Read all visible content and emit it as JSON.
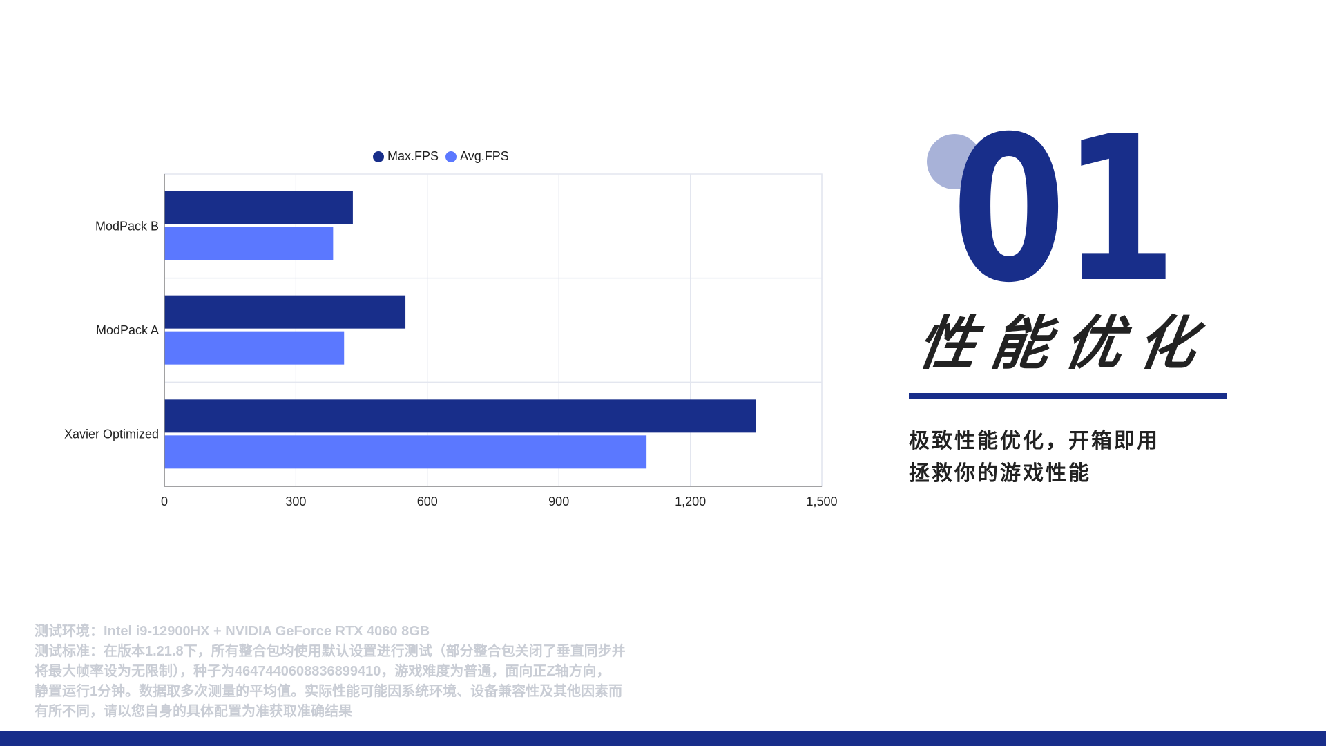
{
  "chart_data": {
    "type": "bar",
    "orientation": "horizontal",
    "categories": [
      "ModPack B",
      "ModPack A",
      "Xavier Optimized"
    ],
    "series": [
      {
        "name": "Max.FPS",
        "values": [
          430,
          550,
          1350
        ],
        "color": "#182e8a"
      },
      {
        "name": "Avg.FPS",
        "values": [
          385,
          410,
          1100
        ],
        "color": "#5b78ff"
      }
    ],
    "xlim": [
      0,
      1500
    ],
    "xticks": [
      "0",
      "300",
      "600",
      "900",
      "1,200",
      "1,500"
    ],
    "xtick_values": [
      0,
      300,
      600,
      900,
      1200,
      1500
    ],
    "grid": true,
    "legend": "top"
  },
  "side": {
    "number": "01",
    "title": "性能优化",
    "subtitle_lines": [
      "极致性能优化，开箱即用",
      "拯救你的游戏性能"
    ],
    "accent": "#182e8a",
    "circle_color": "#a8b2d8"
  },
  "notes": [
    "测试环境：Intel i9-12900HX + NVIDIA GeForce RTX 4060 8GB",
    "测试标准：在版本1.21.8下，所有整合包均使用默认设置进行测试（部分整合包关闭了垂直同步并",
    "将最大帧率设为无限制），种子为4647440608836899410，游戏难度为普通，面向正Z轴方向，",
    "静置运行1分钟。数据取多次测量的平均值。实际性能可能因系统环境、设备兼容性及其他因素而",
    "有所不同，请以您自身的具体配置为准获取准确结果"
  ]
}
